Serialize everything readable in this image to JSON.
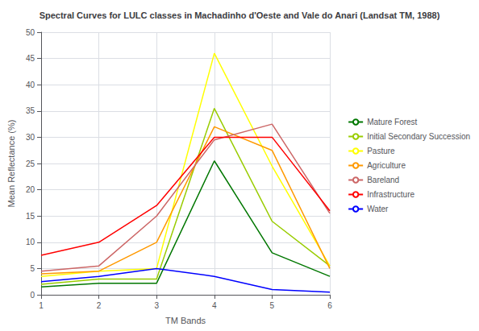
{
  "chart_data": {
    "type": "line",
    "title": "Spectral Curves for LULC classes in Machadinho d'Oeste and Vale do Anari (Landsat TM, 1988)",
    "xlabel": "TM Bands",
    "ylabel": "Mean Reflectance (%)",
    "x": [
      1,
      2,
      3,
      4,
      5,
      6
    ],
    "series": [
      {
        "name": "Mature Forest",
        "color": "#007700",
        "values": [
          1.5,
          2.2,
          2.2,
          25.5,
          8.0,
          3.5
        ]
      },
      {
        "name": "Initial Secondary Succession",
        "color": "#99cc00",
        "values": [
          2.0,
          3.0,
          3.0,
          35.5,
          14.0,
          5.5
        ]
      },
      {
        "name": "Pasture",
        "color": "#ffff00",
        "values": [
          3.5,
          4.5,
          5.0,
          46.0,
          24.5,
          5.5
        ]
      },
      {
        "name": "Agriculture",
        "color": "#ff9900",
        "values": [
          4.0,
          4.5,
          10.0,
          32.0,
          27.5,
          5.0
        ]
      },
      {
        "name": "Bareland",
        "color": "#cc6666",
        "values": [
          4.5,
          5.5,
          15.0,
          29.5,
          32.5,
          15.5
        ]
      },
      {
        "name": "Infrastructure",
        "color": "#ff0000",
        "values": [
          7.5,
          10.0,
          17.0,
          30.0,
          30.0,
          16.0
        ]
      },
      {
        "name": "Water",
        "color": "#0000ff",
        "values": [
          2.5,
          3.5,
          5.0,
          3.5,
          1.0,
          0.5
        ]
      }
    ],
    "xlim": [
      1,
      6
    ],
    "ylim": [
      0,
      50
    ],
    "xticks": [
      1,
      2,
      3,
      4,
      5,
      6
    ],
    "yticks": [
      0,
      5,
      10,
      15,
      20,
      25,
      30,
      35,
      40,
      45,
      50
    ],
    "grid": true,
    "legend": "right"
  }
}
